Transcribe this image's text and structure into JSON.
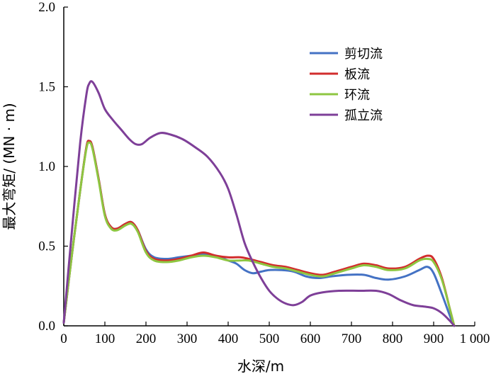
{
  "chart_data": {
    "type": "line",
    "xlabel": "水深/m",
    "ylabel": "最大弯矩/ (MN · m)",
    "xlim": [
      0,
      1000
    ],
    "ylim": [
      0,
      2.0
    ],
    "x_ticks": [
      0,
      100,
      200,
      300,
      400,
      500,
      600,
      700,
      800,
      900,
      1000
    ],
    "x_tick_labels": [
      "0",
      "100",
      "200",
      "300",
      "400",
      "500",
      "600",
      "700",
      "800",
      "900",
      "1 000"
    ],
    "y_ticks": [
      0,
      0.5,
      1.0,
      1.5,
      2.0
    ],
    "y_tick_labels": [
      "0.0",
      "0.5",
      "1.0",
      "1.5",
      "2.0"
    ],
    "grid": false,
    "legend_position": "top-right",
    "series": [
      {
        "name": "剪切流",
        "color": "#4472c4",
        "points": [
          [
            0,
            0.02
          ],
          [
            20,
            0.45
          ],
          [
            40,
            0.85
          ],
          [
            55,
            1.12
          ],
          [
            62,
            1.16
          ],
          [
            70,
            1.12
          ],
          [
            85,
            0.92
          ],
          [
            100,
            0.7
          ],
          [
            115,
            0.62
          ],
          [
            130,
            0.61
          ],
          [
            150,
            0.64
          ],
          [
            165,
            0.65
          ],
          [
            180,
            0.6
          ],
          [
            200,
            0.48
          ],
          [
            220,
            0.43
          ],
          [
            250,
            0.42
          ],
          [
            280,
            0.43
          ],
          [
            310,
            0.44
          ],
          [
            340,
            0.45
          ],
          [
            370,
            0.44
          ],
          [
            400,
            0.41
          ],
          [
            420,
            0.39
          ],
          [
            440,
            0.35
          ],
          [
            460,
            0.33
          ],
          [
            480,
            0.34
          ],
          [
            500,
            0.35
          ],
          [
            530,
            0.35
          ],
          [
            560,
            0.34
          ],
          [
            590,
            0.31
          ],
          [
            620,
            0.3
          ],
          [
            650,
            0.31
          ],
          [
            690,
            0.32
          ],
          [
            730,
            0.32
          ],
          [
            760,
            0.3
          ],
          [
            790,
            0.29
          ],
          [
            830,
            0.31
          ],
          [
            865,
            0.35
          ],
          [
            885,
            0.37
          ],
          [
            900,
            0.33
          ],
          [
            920,
            0.2
          ],
          [
            940,
            0.06
          ],
          [
            950,
            0.0
          ]
        ]
      },
      {
        "name": "板流",
        "color": "#d22d2d",
        "points": [
          [
            0,
            0.02
          ],
          [
            20,
            0.45
          ],
          [
            40,
            0.85
          ],
          [
            55,
            1.12
          ],
          [
            62,
            1.16
          ],
          [
            70,
            1.12
          ],
          [
            85,
            0.92
          ],
          [
            100,
            0.7
          ],
          [
            115,
            0.62
          ],
          [
            130,
            0.61
          ],
          [
            150,
            0.64
          ],
          [
            165,
            0.65
          ],
          [
            180,
            0.6
          ],
          [
            200,
            0.47
          ],
          [
            220,
            0.42
          ],
          [
            250,
            0.41
          ],
          [
            280,
            0.42
          ],
          [
            310,
            0.44
          ],
          [
            340,
            0.46
          ],
          [
            370,
            0.44
          ],
          [
            400,
            0.43
          ],
          [
            430,
            0.43
          ],
          [
            450,
            0.42
          ],
          [
            480,
            0.4
          ],
          [
            510,
            0.38
          ],
          [
            540,
            0.37
          ],
          [
            570,
            0.35
          ],
          [
            600,
            0.33
          ],
          [
            630,
            0.32
          ],
          [
            660,
            0.34
          ],
          [
            700,
            0.37
          ],
          [
            730,
            0.39
          ],
          [
            760,
            0.38
          ],
          [
            790,
            0.36
          ],
          [
            830,
            0.37
          ],
          [
            865,
            0.42
          ],
          [
            885,
            0.44
          ],
          [
            900,
            0.42
          ],
          [
            920,
            0.3
          ],
          [
            940,
            0.1
          ],
          [
            950,
            0.0
          ]
        ]
      },
      {
        "name": "环流",
        "color": "#8ec641",
        "points": [
          [
            0,
            0.02
          ],
          [
            20,
            0.45
          ],
          [
            40,
            0.85
          ],
          [
            55,
            1.11
          ],
          [
            62,
            1.15
          ],
          [
            70,
            1.11
          ],
          [
            85,
            0.91
          ],
          [
            100,
            0.69
          ],
          [
            115,
            0.61
          ],
          [
            130,
            0.6
          ],
          [
            150,
            0.63
          ],
          [
            165,
            0.64
          ],
          [
            180,
            0.59
          ],
          [
            200,
            0.46
          ],
          [
            220,
            0.41
          ],
          [
            250,
            0.4
          ],
          [
            280,
            0.41
          ],
          [
            310,
            0.43
          ],
          [
            340,
            0.44
          ],
          [
            370,
            0.43
          ],
          [
            400,
            0.41
          ],
          [
            430,
            0.41
          ],
          [
            450,
            0.41
          ],
          [
            480,
            0.39
          ],
          [
            510,
            0.37
          ],
          [
            540,
            0.36
          ],
          [
            570,
            0.34
          ],
          [
            600,
            0.32
          ],
          [
            630,
            0.31
          ],
          [
            660,
            0.33
          ],
          [
            700,
            0.36
          ],
          [
            730,
            0.38
          ],
          [
            760,
            0.37
          ],
          [
            790,
            0.35
          ],
          [
            830,
            0.36
          ],
          [
            865,
            0.41
          ],
          [
            885,
            0.42
          ],
          [
            900,
            0.4
          ],
          [
            920,
            0.29
          ],
          [
            940,
            0.1
          ],
          [
            950,
            0.0
          ]
        ]
      },
      {
        "name": "孤立流",
        "color": "#7e3f98",
        "points": [
          [
            0,
            0.02
          ],
          [
            20,
            0.6
          ],
          [
            40,
            1.15
          ],
          [
            55,
            1.45
          ],
          [
            62,
            1.52
          ],
          [
            70,
            1.53
          ],
          [
            85,
            1.46
          ],
          [
            100,
            1.36
          ],
          [
            120,
            1.29
          ],
          [
            140,
            1.23
          ],
          [
            160,
            1.17
          ],
          [
            175,
            1.14
          ],
          [
            190,
            1.14
          ],
          [
            210,
            1.18
          ],
          [
            235,
            1.21
          ],
          [
            260,
            1.2
          ],
          [
            290,
            1.17
          ],
          [
            320,
            1.12
          ],
          [
            350,
            1.06
          ],
          [
            380,
            0.96
          ],
          [
            400,
            0.86
          ],
          [
            420,
            0.7
          ],
          [
            440,
            0.52
          ],
          [
            460,
            0.4
          ],
          [
            480,
            0.3
          ],
          [
            500,
            0.22
          ],
          [
            520,
            0.17
          ],
          [
            540,
            0.14
          ],
          [
            560,
            0.13
          ],
          [
            580,
            0.15
          ],
          [
            600,
            0.19
          ],
          [
            630,
            0.21
          ],
          [
            670,
            0.22
          ],
          [
            720,
            0.22
          ],
          [
            760,
            0.22
          ],
          [
            790,
            0.2
          ],
          [
            820,
            0.16
          ],
          [
            850,
            0.13
          ],
          [
            880,
            0.12
          ],
          [
            900,
            0.11
          ],
          [
            920,
            0.08
          ],
          [
            940,
            0.03
          ],
          [
            950,
            0.0
          ]
        ]
      }
    ]
  }
}
